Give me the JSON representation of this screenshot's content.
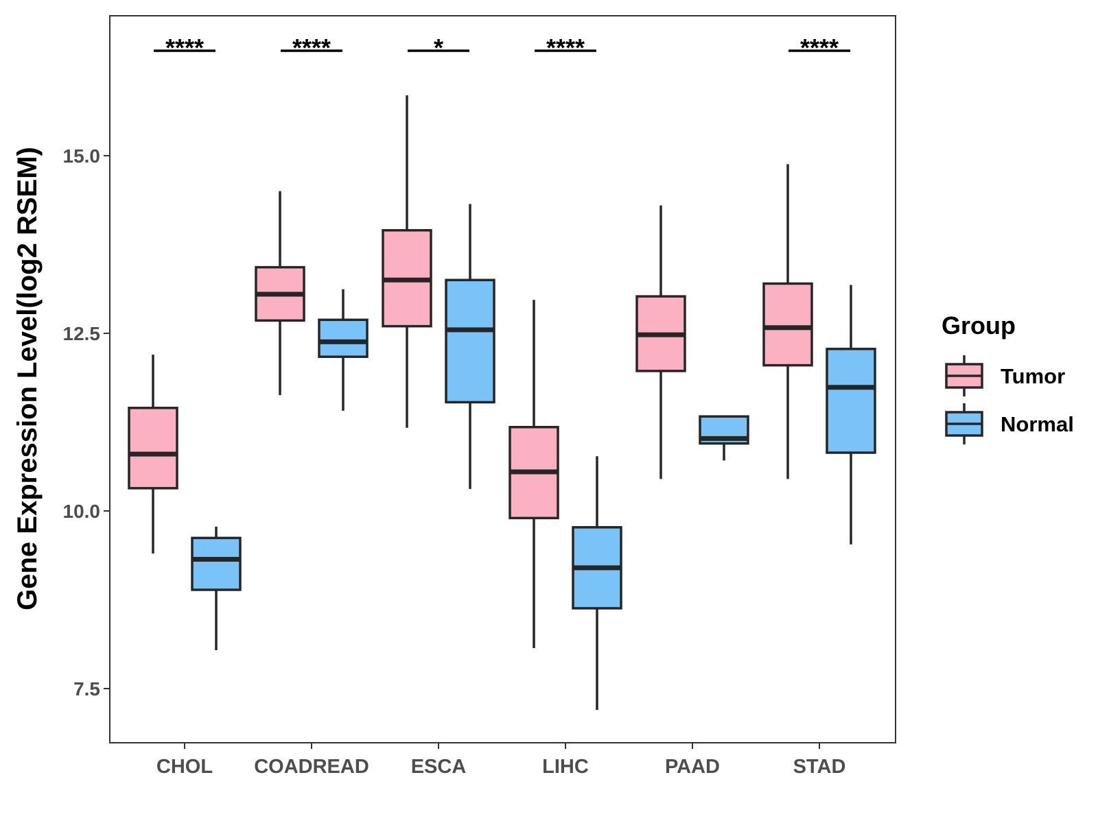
{
  "chart_data": {
    "type": "box",
    "title": "",
    "xlabel": "",
    "ylabel": "Gene Expression Level(log2 RSEM)",
    "ylim": [
      6.75,
      17.0
    ],
    "yticks": [
      7.5,
      10.0,
      12.5,
      15.0
    ],
    "ytick_labels": [
      "7.5",
      "10.0",
      "12.5",
      "15.0"
    ],
    "categories": [
      "CHOL",
      "COADREAD",
      "ESCA",
      "LIHC",
      "PAAD",
      "STAD"
    ],
    "grid": false,
    "legend": {
      "title": "Group",
      "position": "right",
      "entries": [
        {
          "name": "Tumor",
          "color": "#fbb1c2"
        },
        {
          "name": "Normal",
          "color": "#79c3f8"
        }
      ]
    },
    "series": [
      {
        "name": "Tumor",
        "color": "#fbb1c2",
        "boxes": [
          {
            "min": 9.4,
            "q1": 10.32,
            "median": 10.8,
            "q3": 11.45,
            "max": 12.2
          },
          {
            "min": 11.63,
            "q1": 12.68,
            "median": 13.05,
            "q3": 13.43,
            "max": 14.5
          },
          {
            "min": 11.17,
            "q1": 12.6,
            "median": 13.25,
            "q3": 13.95,
            "max": 15.85
          },
          {
            "min": 8.07,
            "q1": 9.9,
            "median": 10.55,
            "q3": 11.18,
            "max": 12.97
          },
          {
            "min": 10.45,
            "q1": 11.97,
            "median": 12.48,
            "q3": 13.02,
            "max": 14.3
          },
          {
            "min": 10.45,
            "q1": 12.05,
            "median": 12.58,
            "q3": 13.2,
            "max": 14.88
          }
        ]
      },
      {
        "name": "Normal",
        "color": "#79c3f8",
        "boxes": [
          {
            "min": 8.04,
            "q1": 8.89,
            "median": 9.32,
            "q3": 9.62,
            "max": 9.78
          },
          {
            "min": 11.41,
            "q1": 12.17,
            "median": 12.38,
            "q3": 12.69,
            "max": 13.12
          },
          {
            "min": 10.31,
            "q1": 11.53,
            "median": 12.55,
            "q3": 13.25,
            "max": 14.32
          },
          {
            "min": 7.2,
            "q1": 8.63,
            "median": 9.2,
            "q3": 9.77,
            "max": 10.77
          },
          {
            "min": 10.71,
            "q1": 10.95,
            "median": 11.02,
            "q3": 11.33,
            "max": 11.33
          },
          {
            "min": 9.53,
            "q1": 10.82,
            "median": 11.74,
            "q3": 12.28,
            "max": 13.18
          }
        ]
      }
    ],
    "significance": [
      "****",
      "****",
      "*",
      "****",
      "",
      "****"
    ]
  }
}
